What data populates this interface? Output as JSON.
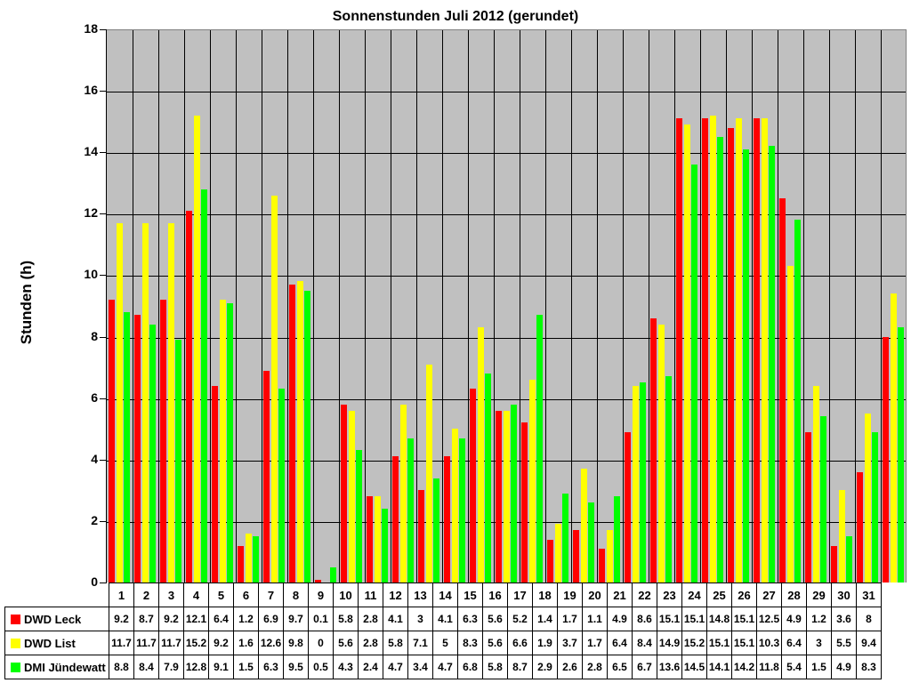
{
  "chart_data": {
    "type": "bar",
    "title": "Sonnenstunden Juli 2012 (gerundet)",
    "xlabel": "",
    "ylabel": "Stunden (h)",
    "ylim": [
      0,
      18
    ],
    "yticks": [
      0,
      2,
      4,
      6,
      8,
      10,
      12,
      14,
      16,
      18
    ],
    "grid": true,
    "legend_position": "data-table-left",
    "categories": [
      "1",
      "2",
      "3",
      "4",
      "5",
      "6",
      "7",
      "8",
      "9",
      "10",
      "11",
      "12",
      "13",
      "14",
      "15",
      "16",
      "17",
      "18",
      "19",
      "20",
      "21",
      "22",
      "23",
      "24",
      "25",
      "26",
      "27",
      "28",
      "29",
      "30",
      "31"
    ],
    "series": [
      {
        "name": "DWD Leck",
        "color": "#ff0000",
        "values": [
          9.2,
          8.7,
          9.2,
          12.1,
          6.4,
          1.2,
          6.9,
          9.7,
          0.1,
          5.8,
          2.8,
          4.1,
          3,
          4.1,
          6.3,
          5.6,
          5.2,
          1.4,
          1.7,
          1.1,
          4.9,
          8.6,
          15.1,
          15.1,
          14.8,
          15.1,
          12.5,
          4.9,
          1.2,
          3.6,
          8
        ]
      },
      {
        "name": "DWD List",
        "color": "#ffff00",
        "values": [
          11.7,
          11.7,
          11.7,
          15.2,
          9.2,
          1.6,
          12.6,
          9.8,
          0,
          5.6,
          2.8,
          5.8,
          7.1,
          5,
          8.3,
          5.6,
          6.6,
          1.9,
          3.7,
          1.7,
          6.4,
          8.4,
          14.9,
          15.2,
          15.1,
          15.1,
          10.3,
          6.4,
          3,
          5.5,
          9.4
        ]
      },
      {
        "name": "DMI Jündewatt",
        "color": "#00ff00",
        "values": [
          8.8,
          8.4,
          7.9,
          12.8,
          9.1,
          1.5,
          6.3,
          9.5,
          0.5,
          4.3,
          2.4,
          4.7,
          3.4,
          4.7,
          6.8,
          5.8,
          8.7,
          2.9,
          2.6,
          2.8,
          6.5,
          6.7,
          13.6,
          14.5,
          14.1,
          14.2,
          11.8,
          5.4,
          1.5,
          4.9,
          8.3
        ]
      }
    ]
  }
}
